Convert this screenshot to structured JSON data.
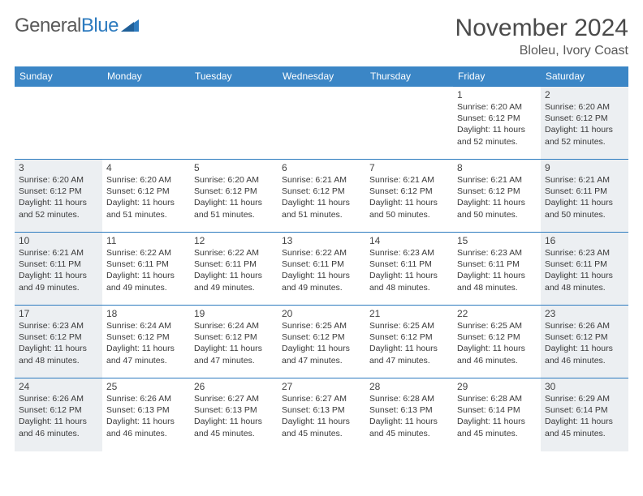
{
  "logo": {
    "text1": "General",
    "text2": "Blue"
  },
  "title": "November 2024",
  "location": "Bloleu, Ivory Coast",
  "colors": {
    "header_bg": "#3b86c6",
    "header_fg": "#ffffff",
    "border": "#2d7bbf",
    "shaded": "#eceff2",
    "text": "#3a3a3a"
  },
  "typography": {
    "title_size": 30,
    "location_size": 16,
    "dow_size": 12,
    "daynum_size": 12,
    "body_size": 10.5
  },
  "dow": [
    "Sunday",
    "Monday",
    "Tuesday",
    "Wednesday",
    "Thursday",
    "Friday",
    "Saturday"
  ],
  "weeks": [
    [
      null,
      null,
      null,
      null,
      null,
      {
        "n": "1",
        "sunrise": "Sunrise: 6:20 AM",
        "sunset": "Sunset: 6:12 PM",
        "day1": "Daylight: 11 hours",
        "day2": "and 52 minutes.",
        "shaded": false
      },
      {
        "n": "2",
        "sunrise": "Sunrise: 6:20 AM",
        "sunset": "Sunset: 6:12 PM",
        "day1": "Daylight: 11 hours",
        "day2": "and 52 minutes.",
        "shaded": true
      }
    ],
    [
      {
        "n": "3",
        "sunrise": "Sunrise: 6:20 AM",
        "sunset": "Sunset: 6:12 PM",
        "day1": "Daylight: 11 hours",
        "day2": "and 52 minutes.",
        "shaded": true
      },
      {
        "n": "4",
        "sunrise": "Sunrise: 6:20 AM",
        "sunset": "Sunset: 6:12 PM",
        "day1": "Daylight: 11 hours",
        "day2": "and 51 minutes.",
        "shaded": false
      },
      {
        "n": "5",
        "sunrise": "Sunrise: 6:20 AM",
        "sunset": "Sunset: 6:12 PM",
        "day1": "Daylight: 11 hours",
        "day2": "and 51 minutes.",
        "shaded": false
      },
      {
        "n": "6",
        "sunrise": "Sunrise: 6:21 AM",
        "sunset": "Sunset: 6:12 PM",
        "day1": "Daylight: 11 hours",
        "day2": "and 51 minutes.",
        "shaded": false
      },
      {
        "n": "7",
        "sunrise": "Sunrise: 6:21 AM",
        "sunset": "Sunset: 6:12 PM",
        "day1": "Daylight: 11 hours",
        "day2": "and 50 minutes.",
        "shaded": false
      },
      {
        "n": "8",
        "sunrise": "Sunrise: 6:21 AM",
        "sunset": "Sunset: 6:12 PM",
        "day1": "Daylight: 11 hours",
        "day2": "and 50 minutes.",
        "shaded": false
      },
      {
        "n": "9",
        "sunrise": "Sunrise: 6:21 AM",
        "sunset": "Sunset: 6:11 PM",
        "day1": "Daylight: 11 hours",
        "day2": "and 50 minutes.",
        "shaded": true
      }
    ],
    [
      {
        "n": "10",
        "sunrise": "Sunrise: 6:21 AM",
        "sunset": "Sunset: 6:11 PM",
        "day1": "Daylight: 11 hours",
        "day2": "and 49 minutes.",
        "shaded": true
      },
      {
        "n": "11",
        "sunrise": "Sunrise: 6:22 AM",
        "sunset": "Sunset: 6:11 PM",
        "day1": "Daylight: 11 hours",
        "day2": "and 49 minutes.",
        "shaded": false
      },
      {
        "n": "12",
        "sunrise": "Sunrise: 6:22 AM",
        "sunset": "Sunset: 6:11 PM",
        "day1": "Daylight: 11 hours",
        "day2": "and 49 minutes.",
        "shaded": false
      },
      {
        "n": "13",
        "sunrise": "Sunrise: 6:22 AM",
        "sunset": "Sunset: 6:11 PM",
        "day1": "Daylight: 11 hours",
        "day2": "and 49 minutes.",
        "shaded": false
      },
      {
        "n": "14",
        "sunrise": "Sunrise: 6:23 AM",
        "sunset": "Sunset: 6:11 PM",
        "day1": "Daylight: 11 hours",
        "day2": "and 48 minutes.",
        "shaded": false
      },
      {
        "n": "15",
        "sunrise": "Sunrise: 6:23 AM",
        "sunset": "Sunset: 6:11 PM",
        "day1": "Daylight: 11 hours",
        "day2": "and 48 minutes.",
        "shaded": false
      },
      {
        "n": "16",
        "sunrise": "Sunrise: 6:23 AM",
        "sunset": "Sunset: 6:11 PM",
        "day1": "Daylight: 11 hours",
        "day2": "and 48 minutes.",
        "shaded": true
      }
    ],
    [
      {
        "n": "17",
        "sunrise": "Sunrise: 6:23 AM",
        "sunset": "Sunset: 6:12 PM",
        "day1": "Daylight: 11 hours",
        "day2": "and 48 minutes.",
        "shaded": true
      },
      {
        "n": "18",
        "sunrise": "Sunrise: 6:24 AM",
        "sunset": "Sunset: 6:12 PM",
        "day1": "Daylight: 11 hours",
        "day2": "and 47 minutes.",
        "shaded": false
      },
      {
        "n": "19",
        "sunrise": "Sunrise: 6:24 AM",
        "sunset": "Sunset: 6:12 PM",
        "day1": "Daylight: 11 hours",
        "day2": "and 47 minutes.",
        "shaded": false
      },
      {
        "n": "20",
        "sunrise": "Sunrise: 6:25 AM",
        "sunset": "Sunset: 6:12 PM",
        "day1": "Daylight: 11 hours",
        "day2": "and 47 minutes.",
        "shaded": false
      },
      {
        "n": "21",
        "sunrise": "Sunrise: 6:25 AM",
        "sunset": "Sunset: 6:12 PM",
        "day1": "Daylight: 11 hours",
        "day2": "and 47 minutes.",
        "shaded": false
      },
      {
        "n": "22",
        "sunrise": "Sunrise: 6:25 AM",
        "sunset": "Sunset: 6:12 PM",
        "day1": "Daylight: 11 hours",
        "day2": "and 46 minutes.",
        "shaded": false
      },
      {
        "n": "23",
        "sunrise": "Sunrise: 6:26 AM",
        "sunset": "Sunset: 6:12 PM",
        "day1": "Daylight: 11 hours",
        "day2": "and 46 minutes.",
        "shaded": true
      }
    ],
    [
      {
        "n": "24",
        "sunrise": "Sunrise: 6:26 AM",
        "sunset": "Sunset: 6:12 PM",
        "day1": "Daylight: 11 hours",
        "day2": "and 46 minutes.",
        "shaded": true
      },
      {
        "n": "25",
        "sunrise": "Sunrise: 6:26 AM",
        "sunset": "Sunset: 6:13 PM",
        "day1": "Daylight: 11 hours",
        "day2": "and 46 minutes.",
        "shaded": false
      },
      {
        "n": "26",
        "sunrise": "Sunrise: 6:27 AM",
        "sunset": "Sunset: 6:13 PM",
        "day1": "Daylight: 11 hours",
        "day2": "and 45 minutes.",
        "shaded": false
      },
      {
        "n": "27",
        "sunrise": "Sunrise: 6:27 AM",
        "sunset": "Sunset: 6:13 PM",
        "day1": "Daylight: 11 hours",
        "day2": "and 45 minutes.",
        "shaded": false
      },
      {
        "n": "28",
        "sunrise": "Sunrise: 6:28 AM",
        "sunset": "Sunset: 6:13 PM",
        "day1": "Daylight: 11 hours",
        "day2": "and 45 minutes.",
        "shaded": false
      },
      {
        "n": "29",
        "sunrise": "Sunrise: 6:28 AM",
        "sunset": "Sunset: 6:14 PM",
        "day1": "Daylight: 11 hours",
        "day2": "and 45 minutes.",
        "shaded": false
      },
      {
        "n": "30",
        "sunrise": "Sunrise: 6:29 AM",
        "sunset": "Sunset: 6:14 PM",
        "day1": "Daylight: 11 hours",
        "day2": "and 45 minutes.",
        "shaded": true
      }
    ]
  ]
}
